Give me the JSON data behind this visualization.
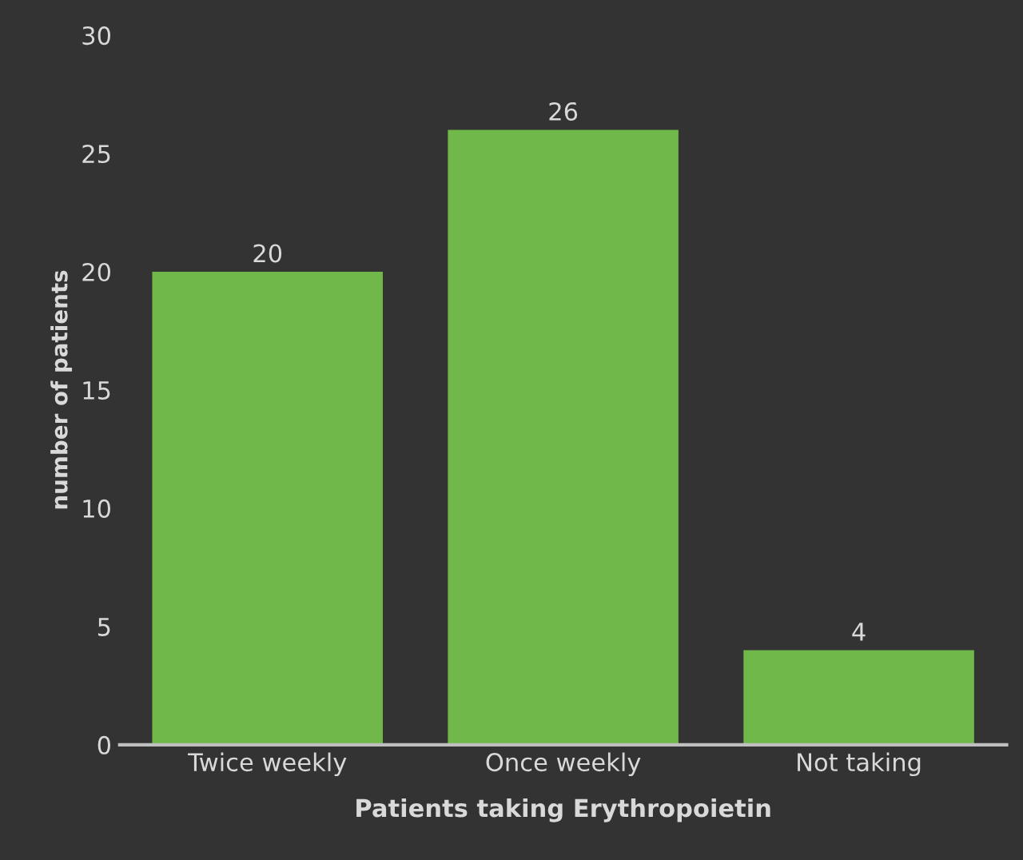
{
  "chart_data": {
    "type": "bar",
    "xlabel": "Patients taking Erythropoietin",
    "ylabel": "number of patients",
    "categories": [
      "Twice weekly",
      "Once weekly",
      "Not taking"
    ],
    "values": [
      20,
      26,
      4
    ],
    "color": "#70b84a",
    "ylim": [
      0,
      30
    ],
    "yticks": [
      0,
      5,
      10,
      15,
      20,
      25,
      30
    ],
    "grid": false,
    "data_labels": true
  }
}
